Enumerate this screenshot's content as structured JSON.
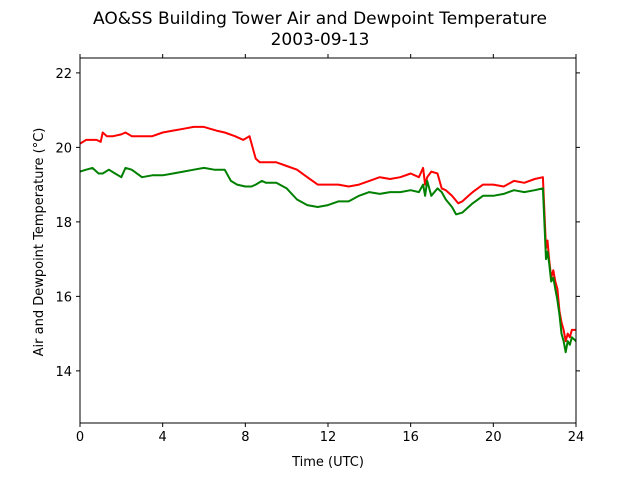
{
  "chart_data": {
    "type": "line",
    "title": "AO&SS Building Tower Air and Dewpoint Temperature",
    "subtitle": "2003-09-13",
    "xlabel": "Time (UTC)",
    "ylabel": "Air and Dewpoint Temperature (°C)",
    "xlim": [
      0,
      24
    ],
    "ylim": [
      12.6,
      22.4
    ],
    "xticks": [
      0,
      4,
      8,
      12,
      16,
      20,
      24
    ],
    "yticks": [
      14,
      16,
      18,
      20,
      22
    ],
    "grid": false,
    "legend": "none",
    "series": [
      {
        "color": "#ff0000",
        "x": [
          0,
          0.3,
          0.8,
          1.0,
          1.1,
          1.3,
          1.6,
          2.0,
          2.2,
          2.5,
          3.0,
          3.5,
          4.0,
          4.5,
          5.0,
          5.5,
          6.0,
          6.3,
          6.6,
          7.0,
          7.5,
          7.9,
          8.2,
          8.5,
          8.7,
          9.0,
          9.5,
          10.0,
          10.5,
          11.0,
          11.5,
          12.0,
          12.5,
          13.0,
          13.5,
          14.0,
          14.5,
          15.0,
          15.5,
          16.0,
          16.4,
          16.6,
          16.7,
          16.8,
          17.0,
          17.3,
          17.5,
          17.7,
          18.0,
          18.3,
          18.5,
          18.8,
          19.0,
          19.5,
          20.0,
          20.5,
          21.0,
          21.5,
          22.0,
          22.4,
          22.55,
          22.62,
          22.7,
          22.8,
          22.9,
          23.0,
          23.1,
          23.2,
          23.3,
          23.4,
          23.5,
          23.6,
          23.7,
          23.8,
          24.0
        ],
        "y": [
          20.1,
          20.2,
          20.2,
          20.15,
          20.4,
          20.3,
          20.3,
          20.35,
          20.4,
          20.3,
          20.3,
          20.3,
          20.4,
          20.45,
          20.5,
          20.55,
          20.55,
          20.5,
          20.45,
          20.4,
          20.3,
          20.2,
          20.3,
          19.7,
          19.6,
          19.6,
          19.6,
          19.5,
          19.4,
          19.2,
          19.0,
          19.0,
          19.0,
          18.95,
          19.0,
          19.1,
          19.2,
          19.15,
          19.2,
          19.3,
          19.2,
          19.45,
          19.0,
          19.2,
          19.35,
          19.3,
          18.9,
          18.85,
          18.7,
          18.5,
          18.55,
          18.7,
          18.8,
          19.0,
          19.0,
          18.95,
          19.1,
          19.05,
          19.15,
          19.2,
          17.3,
          17.5,
          17.0,
          16.5,
          16.7,
          16.4,
          16.2,
          15.6,
          15.3,
          15.1,
          14.8,
          15.0,
          14.9,
          15.1,
          15.1
        ]
      },
      {
        "color": "#008000",
        "x": [
          0,
          0.3,
          0.6,
          0.9,
          1.1,
          1.4,
          1.7,
          2.0,
          2.2,
          2.5,
          3.0,
          3.5,
          4.0,
          4.5,
          5.0,
          5.5,
          6.0,
          6.5,
          7.0,
          7.3,
          7.6,
          8.0,
          8.3,
          8.5,
          8.8,
          9.0,
          9.5,
          10.0,
          10.5,
          11.0,
          11.5,
          12.0,
          12.5,
          13.0,
          13.5,
          14.0,
          14.5,
          15.0,
          15.5,
          16.0,
          16.4,
          16.6,
          16.7,
          16.8,
          17.0,
          17.3,
          17.5,
          17.7,
          18.0,
          18.2,
          18.5,
          18.8,
          19.0,
          19.5,
          20.0,
          20.5,
          21.0,
          21.5,
          22.0,
          22.4,
          22.55,
          22.62,
          22.7,
          22.8,
          22.9,
          23.0,
          23.1,
          23.2,
          23.3,
          23.4,
          23.5,
          23.6,
          23.7,
          23.8,
          24.0
        ],
        "y": [
          19.35,
          19.4,
          19.45,
          19.3,
          19.3,
          19.4,
          19.3,
          19.2,
          19.45,
          19.4,
          19.2,
          19.25,
          19.25,
          19.3,
          19.35,
          19.4,
          19.45,
          19.4,
          19.4,
          19.1,
          19.0,
          18.95,
          18.95,
          19.0,
          19.1,
          19.05,
          19.05,
          18.9,
          18.6,
          18.45,
          18.4,
          18.45,
          18.55,
          18.55,
          18.7,
          18.8,
          18.75,
          18.8,
          18.8,
          18.85,
          18.8,
          19.0,
          18.7,
          19.1,
          18.7,
          18.9,
          18.8,
          18.6,
          18.4,
          18.2,
          18.25,
          18.4,
          18.5,
          18.7,
          18.7,
          18.75,
          18.85,
          18.8,
          18.85,
          18.9,
          17.0,
          17.2,
          16.9,
          16.4,
          16.5,
          16.2,
          15.9,
          15.5,
          15.0,
          14.8,
          14.5,
          14.8,
          14.7,
          14.9,
          14.8
        ]
      }
    ]
  }
}
